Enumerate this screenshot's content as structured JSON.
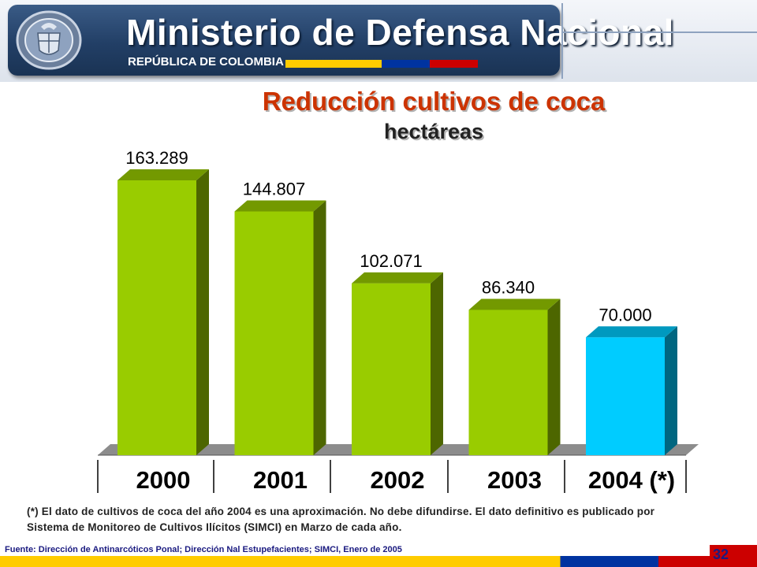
{
  "header": {
    "ministry": "Ministerio de Defensa Nacional",
    "republic": "REPÚBLICA DE COLOMBIA",
    "flag_colors": [
      "#ffcc00",
      "#0033a0",
      "#cc0000"
    ]
  },
  "chart_data": {
    "type": "bar",
    "title": "Reducción cultivos de coca",
    "subtitle": "hectáreas",
    "categories": [
      "2000",
      "2001",
      "2002",
      "2003",
      "2004 (*)"
    ],
    "values": [
      163289,
      144807,
      102071,
      86340,
      70000
    ],
    "value_labels": [
      "163.289",
      "144.807",
      "102.071",
      "86.340",
      "70.000"
    ],
    "colors": [
      "#99cc00",
      "#99cc00",
      "#99cc00",
      "#99cc00",
      "#00ccff"
    ],
    "ylim": [
      0,
      163289
    ],
    "grid": false,
    "legend": "none"
  },
  "note": "(*) El dato de cultivos de coca del año 2004 es una aproximación. No debe difundirse. El dato definitivo es publicado por Sistema de Monitoreo de Cultivos Ilícitos (SIMCI) en Marzo de cada año.",
  "source": "Fuente: Dirección de Antinarcóticos Ponal; Dirección Nal Estupefacientes; SIMCI, Enero de 2005",
  "page_number": "32"
}
